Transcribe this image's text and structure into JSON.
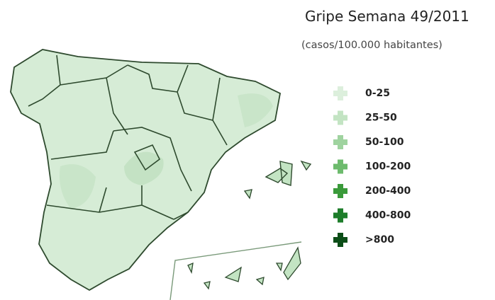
{
  "header": {
    "title": "Gripe Semana 49/2011",
    "subtitle": "(casos/100.000 habitantes)"
  },
  "legend": {
    "items": [
      {
        "label": "0-25",
        "color": "#dcefdc"
      },
      {
        "label": "25-50",
        "color": "#c3e4c3"
      },
      {
        "label": "50-100",
        "color": "#9fd39f"
      },
      {
        "label": "100-200",
        "color": "#6dbb6d"
      },
      {
        "label": "200-400",
        "color": "#3a9a3a"
      },
      {
        "label": "400-800",
        "color": "#1d7d2a"
      },
      {
        "label": ">800",
        "color": "#0b4d17"
      }
    ]
  }
}
